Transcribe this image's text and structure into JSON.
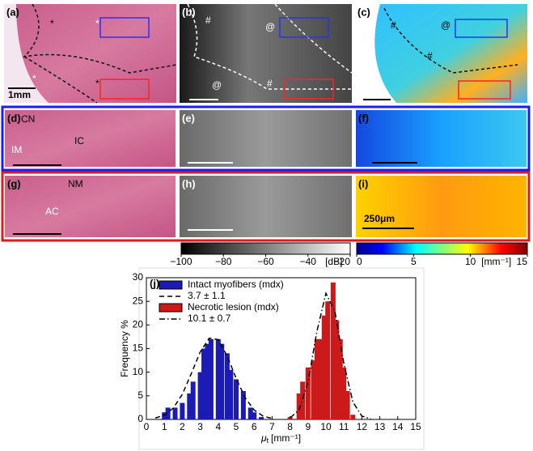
{
  "panels": [
    {
      "label": "(a)",
      "annotations": [
        "*",
        "*",
        "*",
        "*"
      ],
      "scale_bar": "1mm"
    },
    {
      "label": "(b)",
      "annotations": [
        "#",
        "@",
        "@",
        "#"
      ]
    },
    {
      "label": "(c)",
      "annotations": [
        "#",
        "@",
        "#"
      ]
    },
    {
      "label": "(d)",
      "annotations": [
        "CN",
        "IC",
        "IM"
      ]
    },
    {
      "label": "(e)"
    },
    {
      "label": "(f)"
    },
    {
      "label": "(g)",
      "annotations": [
        "NM",
        "AC"
      ]
    },
    {
      "label": "(h)"
    },
    {
      "label": "(i)",
      "scale_bar": "250μm"
    }
  ],
  "colorbars": [
    {
      "lim": [
        -100,
        -20
      ],
      "ticks": [
        {
          "value": -100,
          "label": "−100"
        },
        {
          "value": -80,
          "label": "−80"
        },
        {
          "value": -60,
          "label": "−60"
        },
        {
          "value": -40,
          "label": "−40"
        },
        {
          "value": -20,
          "label": "−20"
        }
      ],
      "unit": "[dB]"
    },
    {
      "lim": [
        0,
        15
      ],
      "ticks": [
        0,
        5,
        10,
        15
      ],
      "unit": "[mm⁻¹]"
    }
  ],
  "chart_data": {
    "type": "bar",
    "label": "(j)",
    "y_label": "Frequency %",
    "x_label": {
      "symbol": "μ",
      "subscript": "t",
      "unit": "[mm⁻¹]"
    },
    "xlim": [
      0,
      15
    ],
    "xticks": [
      0,
      1,
      2,
      3,
      4,
      5,
      6,
      7,
      8,
      9,
      10,
      11,
      12,
      13,
      14,
      15
    ],
    "ylim": [
      0,
      30
    ],
    "yticks": [
      0,
      5,
      10,
      15,
      20,
      25,
      30
    ],
    "series": [
      {
        "name": "Intact myofibers (mdx)",
        "type": "bar",
        "color": "#1c1cb4",
        "x": [
          1.0,
          1.2,
          1.6,
          2.0,
          2.4,
          2.6,
          3.0,
          3.2,
          3.4,
          3.6,
          4.0,
          4.2,
          4.5,
          4.7,
          5.0,
          5.4,
          5.8,
          6.0,
          6.4
        ],
        "values": [
          1.5,
          2.5,
          2.5,
          3.5,
          5.5,
          8,
          10,
          15,
          16,
          17,
          17,
          16,
          14,
          10.5,
          8.5,
          6,
          2.5,
          1.5,
          0.5
        ]
      },
      {
        "name": "3.7 ± 1.1",
        "type": "line",
        "dash": "6,4",
        "color": "#000000",
        "x": [
          0.5,
          1,
          1.5,
          2,
          2.5,
          3,
          3.5,
          4,
          4.5,
          5,
          5.5,
          6,
          6.5,
          7
        ],
        "values": [
          0.3,
          0.9,
          2.4,
          5.3,
          9.7,
          14.3,
          17.2,
          16.9,
          13.4,
          8.7,
          4.6,
          2.0,
          0.7,
          0.2
        ]
      },
      {
        "name": "Necrotic lesion (mdx)",
        "type": "bar",
        "color": "#cc1a1a",
        "x": [
          8.0,
          8.5,
          8.7,
          9.0,
          9.3,
          9.5,
          9.7,
          9.9,
          10.1,
          10.4,
          10.6,
          10.8,
          11.0,
          11.2,
          11.5
        ],
        "values": [
          0.5,
          5.5,
          8,
          11,
          12.5,
          17,
          17,
          22,
          25,
          29,
          21,
          17,
          11,
          6,
          1
        ]
      },
      {
        "name": "10.1 ± 0.7",
        "type": "line",
        "dash": "7,3,1.5,3",
        "color": "#000000",
        "x": [
          8,
          8.5,
          9,
          9.5,
          10,
          10.5,
          11,
          11.5,
          12,
          12.5
        ],
        "values": [
          0.3,
          2.0,
          7.9,
          18.7,
          26.7,
          22.9,
          11.8,
          3.7,
          0.7,
          0.1
        ]
      }
    ]
  }
}
